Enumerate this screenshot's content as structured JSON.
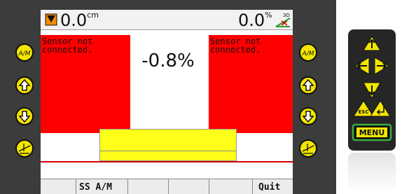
{
  "top_bar": {
    "left_value": "0.0",
    "left_unit": "cm",
    "right_value": "0.0",
    "right_unit": "%",
    "right_icon_label": "3D"
  },
  "left_sensor": "Sensor not\nconnected.",
  "center_value": "-0.8%",
  "right_sensor": "Sensor not\nconnected.",
  "softkeys": [
    "SS A/M",
    "Quit"
  ],
  "side_buttons": {
    "auto_manual": "A/M"
  },
  "keypad": {
    "escape": "ESC",
    "menu": "MENU"
  }
}
